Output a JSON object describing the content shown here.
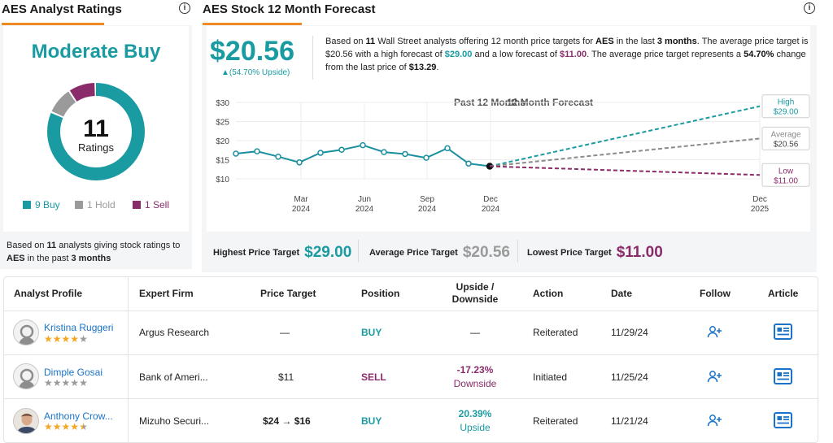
{
  "ratings_panel": {
    "title": "AES Analyst Ratings",
    "consensus": "Moderate Buy",
    "count": "11",
    "count_label": "Ratings",
    "legend": {
      "buy": "9 Buy",
      "hold": "1 Hold",
      "sell": "1 Sell"
    },
    "footer_pre": "Based on ",
    "footer_count": "11",
    "footer_mid": " analysts giving stock ratings to ",
    "footer_ticker": "AES",
    "footer_in": " in the past ",
    "footer_period": "3 months",
    "breakdown": {
      "buy": 9,
      "hold": 1,
      "sell": 1
    },
    "colors": {
      "buy": "#1a9ba1",
      "hold": "#9a9a9a",
      "sell": "#8a2c6a"
    }
  },
  "forecast_panel": {
    "title": "AES Stock 12 Month Forecast",
    "price": "$20.56",
    "upside": "▲(54.70% Upside)",
    "desc": {
      "t1": "Based on ",
      "n": "11",
      "t2": " Wall Street analysts offering 12 month price targets for ",
      "ticker": "AES",
      "t3": " in the last ",
      "period": "3 months",
      "t4": ". The average price target is $20.56 with a high forecast of ",
      "high": "$29.00",
      "t5": " and a low forecast of ",
      "low": "$11.00",
      "t6": ". The average price target represents a ",
      "pct": "54.70%",
      "t7": " change from the last price of ",
      "last": "$13.29",
      "t8": "."
    },
    "chart_header": {
      "past": "Past 12 Months",
      "future": "12 Month Forecast"
    },
    "callouts": {
      "high_label": "High",
      "high_value": "$29.00",
      "avg_label": "Average",
      "avg_value": "$20.56",
      "low_label": "Low",
      "low_value": "$11.00"
    },
    "targets": {
      "highest_label": "Highest Price Target",
      "highest_value": "$29.00",
      "average_label": "Average Price Target",
      "average_value": "$20.56",
      "lowest_label": "Lowest Price Target",
      "lowest_value": "$11.00"
    }
  },
  "chart_data": {
    "type": "line",
    "y_ticks": [
      "$30",
      "$25",
      "$20",
      "$15",
      "$10"
    ],
    "ylim": [
      10,
      30
    ],
    "x_ticks": [
      {
        "month": "Mar",
        "year": "2024"
      },
      {
        "month": "Jun",
        "year": "2024"
      },
      {
        "month": "Sep",
        "year": "2024"
      },
      {
        "month": "Dec",
        "year": "2024"
      },
      {
        "month": "Dec",
        "year": "2025"
      }
    ],
    "history": [
      16.6,
      17.2,
      15.8,
      14.3,
      16.8,
      17.6,
      18.8,
      17.0,
      16.5,
      15.5,
      18.0,
      14.0,
      13.29
    ],
    "forecast": {
      "start": 13.29,
      "high": 29.0,
      "average": 20.56,
      "low": 11.0
    },
    "colors": {
      "history": "#1a8fa0",
      "high": "#1a9ba1",
      "average": "#8a8a8a",
      "low": "#8a2c6a"
    }
  },
  "table": {
    "headers": {
      "profile": "Analyst Profile",
      "firm": "Expert Firm",
      "target": "Price Target",
      "position": "Position",
      "upside_1": "Upside /",
      "upside_2": "Downside",
      "action": "Action",
      "date": "Date",
      "follow": "Follow",
      "article": "Article"
    },
    "rows": [
      {
        "name": "Kristina Ruggeri",
        "stars": 4,
        "firm": "Argus Research",
        "target": "—",
        "position": "BUY",
        "upside": "—",
        "upside_label": "",
        "action": "Reiterated",
        "date": "11/29/24"
      },
      {
        "name": "Dimple Gosai",
        "stars": 0,
        "firm": "Bank of Ameri...",
        "target": "$11",
        "position": "SELL",
        "upside": "-17.23%",
        "upside_label": "Downside",
        "action": "Initiated",
        "date": "11/25/24"
      },
      {
        "name": "Anthony Crow...",
        "stars": 4.5,
        "firm": "Mizuho Securi...",
        "target": "$24 → $16",
        "position": "BUY",
        "upside": "20.39%",
        "upside_label": "Upside",
        "action": "Reiterated",
        "date": "11/21/24"
      }
    ]
  }
}
